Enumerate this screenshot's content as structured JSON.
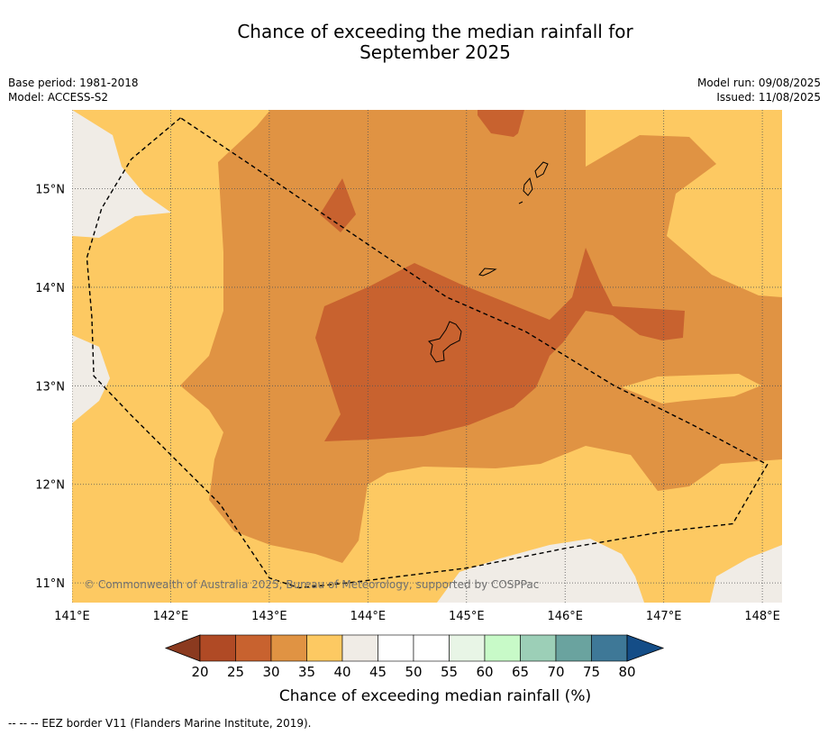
{
  "title_line1": "Chance of exceeding the median rainfall for",
  "title_line2": "September 2025",
  "meta": {
    "base_period": "Base period: 1981-2018",
    "model": "Model: ACCESS-S2",
    "model_run": "Model run: 09/08/2025",
    "issued": "Issued: 11/08/2025"
  },
  "map": {
    "lon_range": [
      141,
      148.2
    ],
    "lat_range": [
      10.8,
      15.8
    ],
    "lon_ticks": [
      {
        "value": 141,
        "label": "141°E"
      },
      {
        "value": 142,
        "label": "142°E"
      },
      {
        "value": 143,
        "label": "143°E"
      },
      {
        "value": 144,
        "label": "144°E"
      },
      {
        "value": 145,
        "label": "145°E"
      },
      {
        "value": 146,
        "label": "146°E"
      },
      {
        "value": 147,
        "label": "147°E"
      },
      {
        "value": 148,
        "label": "148°E"
      }
    ],
    "lat_ticks": [
      {
        "value": 11,
        "label": "11°N"
      },
      {
        "value": 12,
        "label": "12°N"
      },
      {
        "value": 13,
        "label": "13°N"
      },
      {
        "value": 14,
        "label": "14°N"
      },
      {
        "value": 15,
        "label": "15°N"
      }
    ],
    "copyright": "© Commonwealth of Australia 2025, Bureau of Meteorology, supported by COSPPac",
    "eez_border": [
      [
        142.1,
        15.72
      ],
      [
        141.6,
        15.3
      ],
      [
        141.3,
        14.8
      ],
      [
        141.15,
        14.3
      ],
      [
        141.2,
        13.7
      ],
      [
        141.22,
        13.1
      ],
      [
        141.6,
        12.7
      ],
      [
        142.5,
        11.8
      ],
      [
        143.0,
        11.05
      ],
      [
        143.3,
        10.95
      ],
      [
        143.8,
        11.0
      ],
      [
        145.0,
        11.15
      ],
      [
        146.0,
        11.35
      ],
      [
        147.0,
        11.52
      ],
      [
        147.7,
        11.6
      ],
      [
        148.05,
        12.2
      ],
      [
        147.3,
        12.6
      ],
      [
        146.5,
        13.0
      ],
      [
        145.6,
        13.55
      ],
      [
        144.8,
        13.9
      ],
      [
        144.2,
        14.3
      ],
      [
        142.8,
        15.25
      ],
      [
        142.1,
        15.72
      ]
    ]
  },
  "colorbar": {
    "ticks": [
      "20",
      "25",
      "30",
      "35",
      "40",
      "45",
      "50",
      "55",
      "60",
      "65",
      "70",
      "75",
      "80"
    ],
    "colors": {
      "below_20": "#8b3a1f",
      "20_25": "#b04a25",
      "25_30": "#c8622f",
      "30_35": "#e09343",
      "35_40": "#fdc962",
      "40_45": "#f0ece6",
      "45_50": "#ffffff",
      "50_55": "#ffffff",
      "55_60": "#e8f5e6",
      "60_65": "#c8fac8",
      "65_70": "#9ccfb7",
      "70_75": "#6aa39f",
      "75_80": "#3e7897",
      "above_80": "#144d87"
    },
    "label": "Chance of exceeding median rainfall (%)"
  },
  "footnote": "--  --  -- EEZ border V11 (Flanders Marine Institute, 2019)."
}
